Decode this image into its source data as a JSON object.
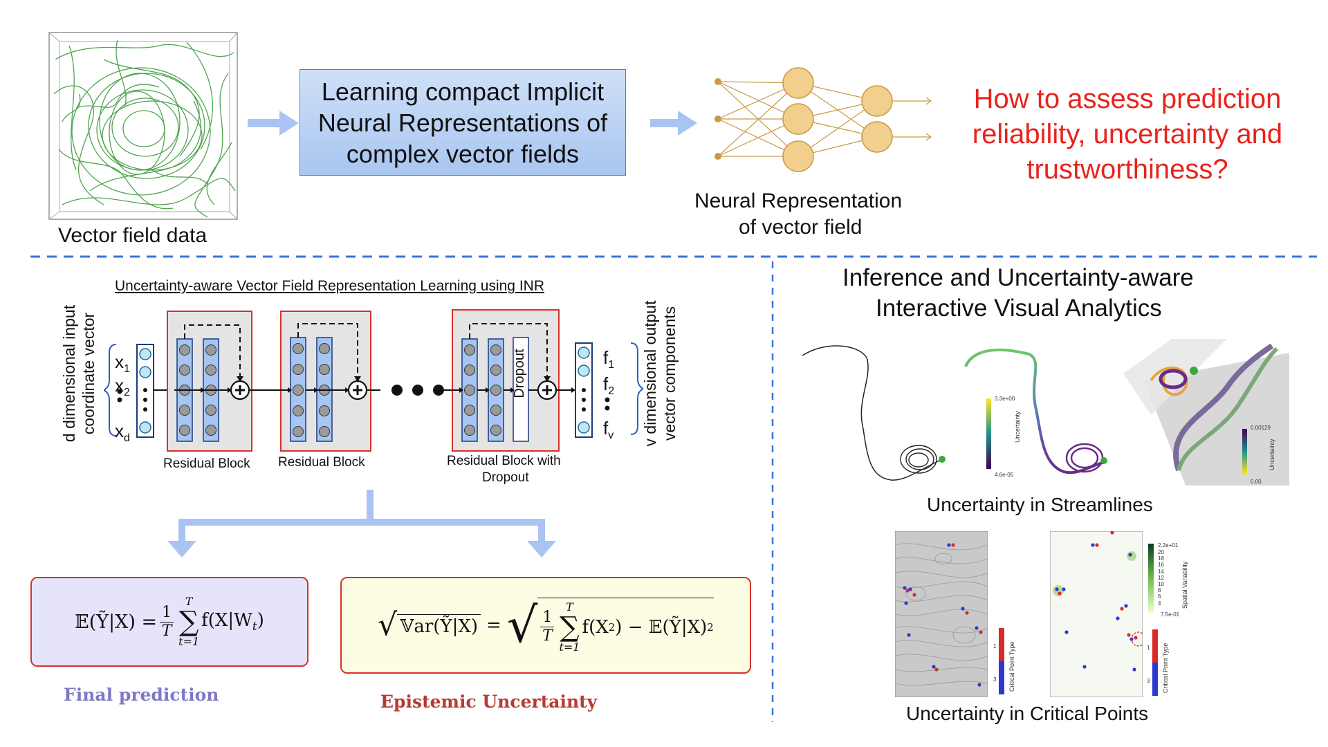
{
  "top": {
    "vector_field_label": "Vector field data",
    "main_box_text": "Learning compact Implicit Neural Representations of complex vector fields",
    "neural_rep_label_line1": "Neural Representation",
    "neural_rep_label_line2": "of vector field",
    "question": "How to assess prediction reliability, uncertainty and trustworthiness?"
  },
  "architecture": {
    "title": "Uncertainty-aware Vector Field Representation Learning using INR",
    "input_label_line1": "d dimensional input",
    "input_label_line2": "coordinate vector",
    "output_label_line1": "v dimensional output",
    "output_label_line2": "vector components",
    "block1_label": "Residual Block",
    "block2_label": "Residual Block",
    "block3_label_line1": "Residual Block with",
    "block3_label_line2": "Dropout",
    "dropout_label": "Dropout",
    "inputs": {
      "x1": "x",
      "x1_sub": "1",
      "x2": "x",
      "x2_sub": "2",
      "xd": "x",
      "xd_sub": "d"
    },
    "outputs": {
      "f1": "f",
      "f1_sub": "1",
      "f2": "f",
      "f2_sub": "2",
      "fv": "f",
      "fv_sub": "v"
    }
  },
  "formulas": {
    "final_prediction_label": "Final prediction",
    "epistemic_label": "Epistemic Uncertainty",
    "pred_lhs": "𝔼(Ỹ|X) =",
    "pred_rhs": "f(X|W",
    "pred_rhs_sub": "t",
    "pred_rhs_end": ")",
    "unc_lhs": "𝕍ar(Ỹ|X)",
    "unc_eq": "=",
    "unc_rhs": "f(X",
    "unc_rhs_sup": "2",
    "unc_rhs_mid": ") − 𝔼(Ỹ|X)",
    "unc_rhs_end_sup": "2",
    "frac_num": "1",
    "frac_den": "T",
    "sum_top": "T",
    "sum_bot": "t=1",
    "sum_sigma": "∑"
  },
  "right_panel": {
    "title_line1": "Inference and Uncertainty-aware",
    "title_line2": "Interactive Visual Analytics",
    "streamlines_label": "Uncertainty in Streamlines",
    "critical_label": "Uncertainty in Critical Points",
    "colorbar1_max": "3.3e+00",
    "colorbar1_min": "4.6e-05",
    "colorbar1_title": "Uncertainty",
    "colorbar2_max": "0.00129",
    "colorbar2_min": "0.00",
    "colorbar2_title": "Uncertainty",
    "cp_bar_title": "Critical Point Type",
    "cp_bar_1": "1",
    "cp_bar_3": "3",
    "sv_max": "2.2e+01",
    "sv_ticks": [
      "20",
      "18",
      "16",
      "14",
      "12",
      "10",
      "8",
      "6",
      "4"
    ],
    "sv_min": "7.5e-01",
    "sv_title": "Spatial Variability"
  },
  "colors": {
    "arrow_blue": "#a9c4f2",
    "dash_blue": "#3a73dd",
    "red": "#e8231b",
    "neuron_fill": "#f2cf8c",
    "neuron_stroke": "#c99a44",
    "streamline_green": "#3c9a3c",
    "final_pred_color": "#7e78c9",
    "epistemic_color": "#b83a32"
  }
}
